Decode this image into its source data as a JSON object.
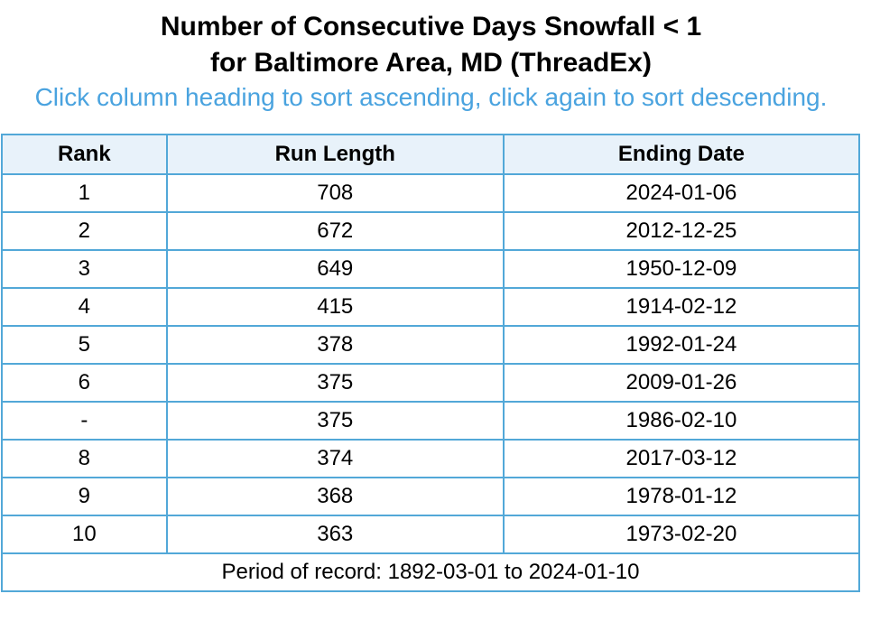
{
  "title": {
    "line1": "Number of Consecutive Days Snowfall < 1",
    "line2": "for Baltimore Area, MD (ThreadEx)"
  },
  "subtitle": "Click column heading to sort ascending, click again to sort descending.",
  "table": {
    "headers": {
      "rank": "Rank",
      "run_length": "Run Length",
      "ending_date": "Ending Date"
    },
    "rows": [
      {
        "rank": "1",
        "run_length": "708",
        "ending_date": "2024-01-06"
      },
      {
        "rank": "2",
        "run_length": "672",
        "ending_date": "2012-12-25"
      },
      {
        "rank": "3",
        "run_length": "649",
        "ending_date": "1950-12-09"
      },
      {
        "rank": "4",
        "run_length": "415",
        "ending_date": "1914-02-12"
      },
      {
        "rank": "5",
        "run_length": "378",
        "ending_date": "1992-01-24"
      },
      {
        "rank": "6",
        "run_length": "375",
        "ending_date": "2009-01-26"
      },
      {
        "rank": "-",
        "run_length": "375",
        "ending_date": "1986-02-10"
      },
      {
        "rank": "8",
        "run_length": "374",
        "ending_date": "2017-03-12"
      },
      {
        "rank": "9",
        "run_length": "368",
        "ending_date": "1978-01-12"
      },
      {
        "rank": "10",
        "run_length": "363",
        "ending_date": "1973-02-20"
      }
    ],
    "footer": "Period of record: 1892-03-01 to 2024-01-10"
  },
  "colors": {
    "subtitle": "#4aa3df",
    "border": "#52a8d8",
    "header_bg": "#e8f2fa"
  }
}
